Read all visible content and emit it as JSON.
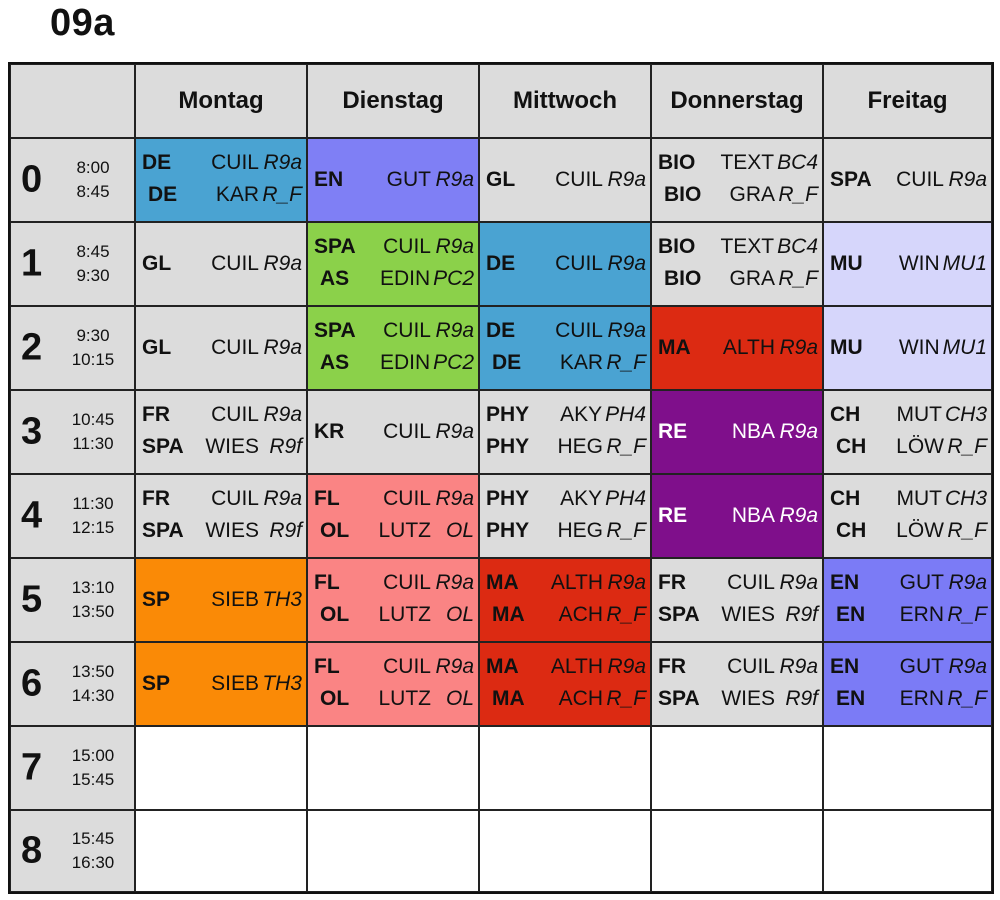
{
  "title": "09a",
  "days": [
    "Montag",
    "Dienstag",
    "Mittwoch",
    "Donnerstag",
    "Freitag"
  ],
  "colors": {
    "grey": "#dcdcdc",
    "blue": "#4aa3d2",
    "violet": "#7f7ff5",
    "green": "#8bd14a",
    "red": "#dc2a12",
    "purple": "#7f0f8b",
    "lavender": "#d6d6fb",
    "orange": "#fa8a06",
    "salmon": "#fa8484",
    "periwinkle": "#7b7bf6",
    "white": "#ffffff"
  },
  "periods": [
    {
      "num": "0",
      "start": "8:00",
      "end": "8:45"
    },
    {
      "num": "1",
      "start": "8:45",
      "end": "9:30"
    },
    {
      "num": "2",
      "start": "9:30",
      "end": "10:15"
    },
    {
      "num": "3",
      "start": "10:45",
      "end": "11:30"
    },
    {
      "num": "4",
      "start": "11:30",
      "end": "12:15"
    },
    {
      "num": "5",
      "start": "13:10",
      "end": "13:50"
    },
    {
      "num": "6",
      "start": "13:50",
      "end": "14:30"
    },
    {
      "num": "7",
      "start": "15:00",
      "end": "15:45"
    },
    {
      "num": "8",
      "start": "15:45",
      "end": "16:30"
    }
  ],
  "cells": [
    [
      {
        "color": "blue",
        "entries": [
          {
            "subject": "DE",
            "teacher": "CUIL",
            "room": "R9a"
          },
          {
            "subject": "DE",
            "teacher": "KAR",
            "room": "R_F",
            "indent": true
          }
        ]
      },
      {
        "color": "violet",
        "entries": [
          {
            "subject": "EN",
            "teacher": "GUT",
            "room": "R9a"
          }
        ]
      },
      {
        "color": "grey",
        "entries": [
          {
            "subject": "GL",
            "teacher": "CUIL",
            "room": "R9a"
          }
        ]
      },
      {
        "color": "grey",
        "entries": [
          {
            "subject": "BIO",
            "teacher": "TEXT",
            "room": "BC4"
          },
          {
            "subject": "BIO",
            "teacher": "GRA",
            "room": "R_F",
            "indent": true
          }
        ]
      },
      {
        "color": "grey",
        "entries": [
          {
            "subject": "SPA",
            "teacher": "CUIL",
            "room": "R9a"
          }
        ]
      }
    ],
    [
      {
        "color": "grey",
        "entries": [
          {
            "subject": "GL",
            "teacher": "CUIL",
            "room": "R9a"
          }
        ]
      },
      {
        "color": "green",
        "entries": [
          {
            "subject": "SPA",
            "teacher": "CUIL",
            "room": "R9a"
          },
          {
            "subject": "AS",
            "teacher": "EDIN",
            "room": "PC2",
            "indent": true
          }
        ]
      },
      {
        "color": "blue",
        "entries": [
          {
            "subject": "DE",
            "teacher": "CUIL",
            "room": "R9a"
          }
        ]
      },
      {
        "color": "grey",
        "entries": [
          {
            "subject": "BIO",
            "teacher": "TEXT",
            "room": "BC4"
          },
          {
            "subject": "BIO",
            "teacher": "GRA",
            "room": "R_F",
            "indent": true
          }
        ]
      },
      {
        "color": "lavender",
        "entries": [
          {
            "subject": "MU",
            "teacher": "WIN",
            "room": "MU1"
          }
        ]
      }
    ],
    [
      {
        "color": "grey",
        "entries": [
          {
            "subject": "GL",
            "teacher": "CUIL",
            "room": "R9a"
          }
        ]
      },
      {
        "color": "green",
        "entries": [
          {
            "subject": "SPA",
            "teacher": "CUIL",
            "room": "R9a"
          },
          {
            "subject": "AS",
            "teacher": "EDIN",
            "room": "PC2",
            "indent": true
          }
        ]
      },
      {
        "color": "blue",
        "entries": [
          {
            "subject": "DE",
            "teacher": "CUIL",
            "room": "R9a"
          },
          {
            "subject": "DE",
            "teacher": "KAR",
            "room": "R_F",
            "indent": true
          }
        ]
      },
      {
        "color": "red",
        "entries": [
          {
            "subject": "MA",
            "teacher": "ALTH",
            "room": "R9a"
          }
        ]
      },
      {
        "color": "lavender",
        "entries": [
          {
            "subject": "MU",
            "teacher": "WIN",
            "room": "MU1"
          }
        ]
      }
    ],
    [
      {
        "color": "grey",
        "entries": [
          {
            "subject": "FR",
            "teacher": "CUIL",
            "room": "R9a"
          },
          {
            "subject": "SPA",
            "teacher": "WIES",
            "room": "R9f"
          }
        ]
      },
      {
        "color": "grey",
        "entries": [
          {
            "subject": "KR",
            "teacher": "CUIL",
            "room": "R9a"
          }
        ]
      },
      {
        "color": "grey",
        "entries": [
          {
            "subject": "PHY",
            "teacher": "AKY",
            "room": "PH4"
          },
          {
            "subject": "PHY",
            "teacher": "HEG",
            "room": "R_F"
          }
        ]
      },
      {
        "color": "purple",
        "white": true,
        "entries": [
          {
            "subject": "RE",
            "teacher": "NBA",
            "room": "R9a"
          }
        ]
      },
      {
        "color": "grey",
        "entries": [
          {
            "subject": "CH",
            "teacher": "MUT",
            "room": "CH3"
          },
          {
            "subject": "CH",
            "teacher": "LÖW",
            "room": "R_F",
            "indent": true
          }
        ]
      }
    ],
    [
      {
        "color": "grey",
        "entries": [
          {
            "subject": "FR",
            "teacher": "CUIL",
            "room": "R9a"
          },
          {
            "subject": "SPA",
            "teacher": "WIES",
            "room": "R9f"
          }
        ]
      },
      {
        "color": "salmon",
        "entries": [
          {
            "subject": "FL",
            "teacher": "CUIL",
            "room": "R9a"
          },
          {
            "subject": "OL",
            "teacher": "LUTZ",
            "room": "OL",
            "indent": true
          }
        ]
      },
      {
        "color": "grey",
        "entries": [
          {
            "subject": "PHY",
            "teacher": "AKY",
            "room": "PH4"
          },
          {
            "subject": "PHY",
            "teacher": "HEG",
            "room": "R_F"
          }
        ]
      },
      {
        "color": "purple",
        "white": true,
        "entries": [
          {
            "subject": "RE",
            "teacher": "NBA",
            "room": "R9a"
          }
        ]
      },
      {
        "color": "grey",
        "entries": [
          {
            "subject": "CH",
            "teacher": "MUT",
            "room": "CH3"
          },
          {
            "subject": "CH",
            "teacher": "LÖW",
            "room": "R_F",
            "indent": true
          }
        ]
      }
    ],
    [
      {
        "color": "orange",
        "entries": [
          {
            "subject": "SP",
            "teacher": "SIEB",
            "room": "TH3"
          }
        ]
      },
      {
        "color": "salmon",
        "entries": [
          {
            "subject": "FL",
            "teacher": "CUIL",
            "room": "R9a"
          },
          {
            "subject": "OL",
            "teacher": "LUTZ",
            "room": "OL",
            "indent": true
          }
        ]
      },
      {
        "color": "red",
        "entries": [
          {
            "subject": "MA",
            "teacher": "ALTH",
            "room": "R9a"
          },
          {
            "subject": "MA",
            "teacher": "ACH",
            "room": "R_F",
            "indent": true
          }
        ]
      },
      {
        "color": "grey",
        "entries": [
          {
            "subject": "FR",
            "teacher": "CUIL",
            "room": "R9a"
          },
          {
            "subject": "SPA",
            "teacher": "WIES",
            "room": "R9f"
          }
        ]
      },
      {
        "color": "periwinkle",
        "entries": [
          {
            "subject": "EN",
            "teacher": "GUT",
            "room": "R9a"
          },
          {
            "subject": "EN",
            "teacher": "ERN",
            "room": "R_F",
            "indent": true
          }
        ]
      }
    ],
    [
      {
        "color": "orange",
        "entries": [
          {
            "subject": "SP",
            "teacher": "SIEB",
            "room": "TH3"
          }
        ]
      },
      {
        "color": "salmon",
        "entries": [
          {
            "subject": "FL",
            "teacher": "CUIL",
            "room": "R9a"
          },
          {
            "subject": "OL",
            "teacher": "LUTZ",
            "room": "OL",
            "indent": true
          }
        ]
      },
      {
        "color": "red",
        "entries": [
          {
            "subject": "MA",
            "teacher": "ALTH",
            "room": "R9a"
          },
          {
            "subject": "MA",
            "teacher": "ACH",
            "room": "R_F",
            "indent": true
          }
        ]
      },
      {
        "color": "grey",
        "entries": [
          {
            "subject": "FR",
            "teacher": "CUIL",
            "room": "R9a"
          },
          {
            "subject": "SPA",
            "teacher": "WIES",
            "room": "R9f"
          }
        ]
      },
      {
        "color": "periwinkle",
        "entries": [
          {
            "subject": "EN",
            "teacher": "GUT",
            "room": "R9a"
          },
          {
            "subject": "EN",
            "teacher": "ERN",
            "room": "R_F",
            "indent": true
          }
        ]
      }
    ],
    [
      {
        "color": "white",
        "entries": []
      },
      {
        "color": "white",
        "entries": []
      },
      {
        "color": "white",
        "entries": []
      },
      {
        "color": "white",
        "entries": []
      },
      {
        "color": "white",
        "entries": []
      }
    ],
    [
      {
        "color": "white",
        "entries": []
      },
      {
        "color": "white",
        "entries": []
      },
      {
        "color": "white",
        "entries": []
      },
      {
        "color": "white",
        "entries": []
      },
      {
        "color": "white",
        "entries": []
      }
    ]
  ]
}
